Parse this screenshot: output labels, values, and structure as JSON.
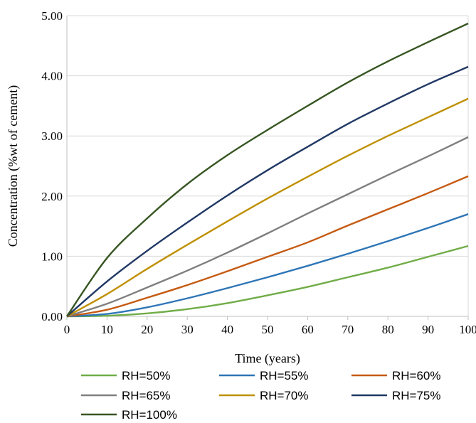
{
  "chart_data": {
    "type": "line",
    "xlabel": "Time (years)",
    "ylabel": "Concentration (%wt of cement)",
    "xlim": [
      0,
      100
    ],
    "ylim": [
      0,
      5
    ],
    "x_ticks": [
      "0",
      "10",
      "20",
      "30",
      "40",
      "50",
      "60",
      "70",
      "80",
      "90",
      "100"
    ],
    "y_ticks": [
      "0.00",
      "1.00",
      "2.00",
      "3.00",
      "4.00",
      "5.00"
    ],
    "grid": "horizontal",
    "legend_position": "bottom",
    "x": [
      0,
      10,
      20,
      30,
      40,
      50,
      60,
      70,
      80,
      90,
      100
    ],
    "series": [
      {
        "name": "RH=50%",
        "color": "#70ad47",
        "values": [
          0,
          0.01,
          0.05,
          0.12,
          0.22,
          0.35,
          0.49,
          0.65,
          0.81,
          0.99,
          1.17
        ]
      },
      {
        "name": "RH=55%",
        "color": "#2e75b6",
        "values": [
          0,
          0.04,
          0.15,
          0.3,
          0.47,
          0.65,
          0.84,
          1.04,
          1.25,
          1.47,
          1.7
        ]
      },
      {
        "name": "RH=60%",
        "color": "#c55a11",
        "values": [
          0,
          0.11,
          0.31,
          0.52,
          0.75,
          0.99,
          1.23,
          1.51,
          1.78,
          2.05,
          2.33
        ]
      },
      {
        "name": "RH=65%",
        "color": "#7f7f7f",
        "values": [
          0,
          0.21,
          0.48,
          0.76,
          1.06,
          1.38,
          1.71,
          2.03,
          2.35,
          2.66,
          2.98
        ]
      },
      {
        "name": "RH=70%",
        "color": "#bf9000",
        "values": [
          0,
          0.37,
          0.79,
          1.19,
          1.58,
          1.96,
          2.32,
          2.67,
          3.0,
          3.31,
          3.62
        ]
      },
      {
        "name": "RH=75%",
        "color": "#203864",
        "values": [
          0,
          0.58,
          1.09,
          1.56,
          2.01,
          2.43,
          2.82,
          3.2,
          3.54,
          3.86,
          4.15
        ]
      },
      {
        "name": "RH=100%",
        "color": "#375623",
        "values": [
          0,
          0.97,
          1.63,
          2.2,
          2.68,
          3.1,
          3.5,
          3.89,
          4.24,
          4.56,
          4.87
        ]
      }
    ]
  }
}
